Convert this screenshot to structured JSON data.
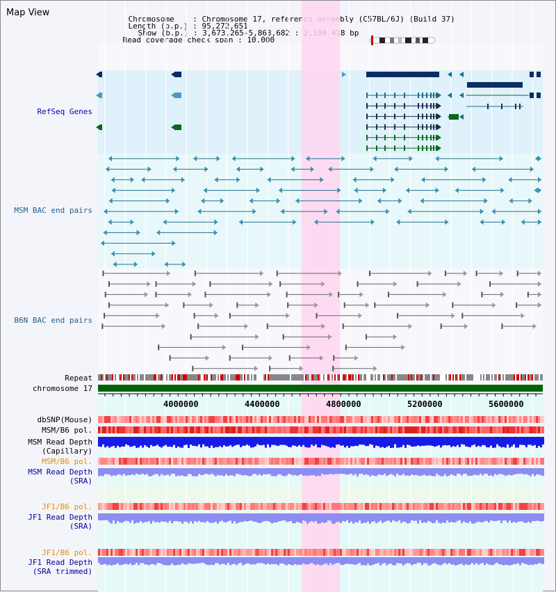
{
  "title": "Map View",
  "header": {
    "chromosome_key": "Chromosome",
    "chromosome_value": "Chromosome 17, reference assembly (C57BL/6J) (Build 37)",
    "length_key": "Length (b.p.)",
    "length_value": "95,272,651",
    "show_key": "Show (b.p.)",
    "show_value": "3,673,265-5,863,682 : 2,190,418 bp",
    "coverage_key": "Read coverage check span",
    "coverage_value": "10,000"
  },
  "tracks": {
    "refseq": "RefSeq Genes",
    "msm_bac": "MSM BAC end pairs",
    "b6n_bac": "B6N BAC end pairs",
    "repeat": "Repeat",
    "chromosome": "chromosome 17",
    "dbsnp": "dbSNP(Mouse)",
    "msm_b6_pol_1": "MSM/B6 pol.",
    "msm_depth_cap_1": "MSM Read Depth",
    "msm_depth_cap_2": "(Capillary)",
    "msm_b6_pol_2": "MSM/B6 pol.",
    "msm_depth_sra_1": "MSM Read Depth",
    "msm_depth_sra_2": "(SRA)",
    "jf1_b6_pol_1": "JF1/B6 pol.",
    "jf1_depth_sra_1": "JF1 Read Depth",
    "jf1_depth_sra_2": "(SRA)",
    "jf1_b6_pol_2": "JF1/B6 pol.",
    "jf1_depth_trim_1": "JF1 Read Depth",
    "jf1_depth_trim_2": "(SRA trimmed)"
  },
  "axis": {
    "ticks": [
      "4000000",
      "4400000",
      "4800000",
      "5200000",
      "5600000"
    ]
  },
  "colors": {
    "highlight": "#ffd6f0",
    "refseq_bg": "#dff1fb",
    "gene_dark": "#0b2d63",
    "gene_teal": "#1c6b8a",
    "gene_green": "#0a6a1a",
    "msm_line": "#1f6f8b",
    "b6n_line": "#666666",
    "chrom_green": "#006400",
    "depth_blue": "#1a1ae6",
    "depth_light": "#8c8cf2"
  }
}
